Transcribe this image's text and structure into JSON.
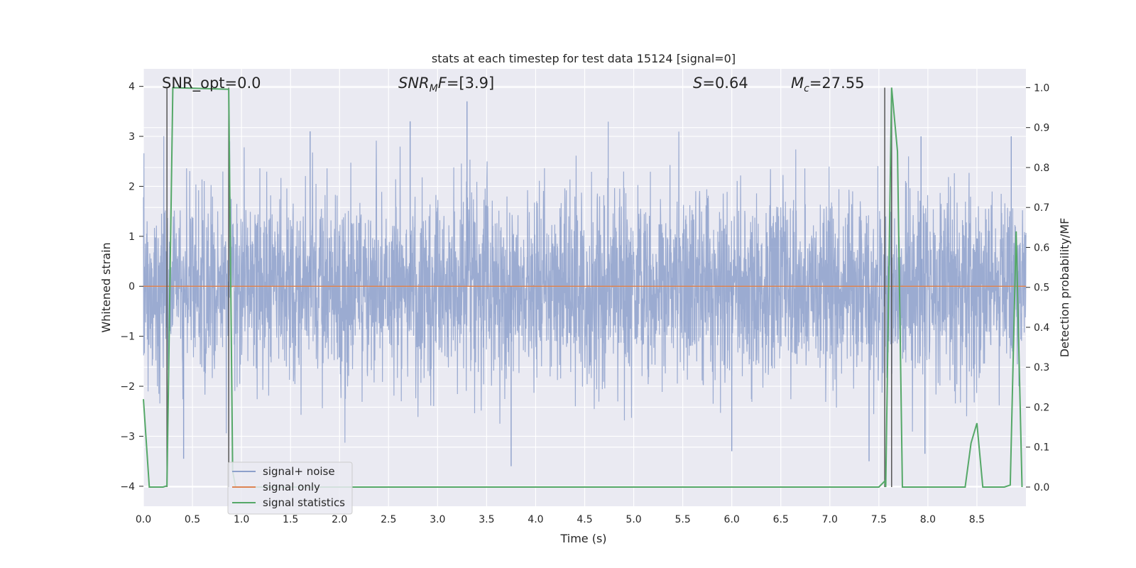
{
  "chart_data": {
    "type": "line",
    "title": "stats at each timestep for test data 15124 [signal=0]",
    "xlabel": "Time (s)",
    "ylabel_left": "Whitened strain",
    "ylabel_right": "Detection probability/MF",
    "xlim": [
      0,
      9.0
    ],
    "ylim_left": [
      -4.4,
      4.35
    ],
    "ylim_right": [
      -0.048,
      1.047
    ],
    "x_ticks": [
      0.0,
      0.5,
      1.0,
      1.5,
      2.0,
      2.5,
      3.0,
      3.5,
      4.0,
      4.5,
      5.0,
      5.5,
      6.0,
      6.5,
      7.0,
      7.5,
      8.0,
      8.5
    ],
    "x_tick_labels": [
      "0.0",
      "0.5",
      "1.0",
      "1.5",
      "2.0",
      "2.5",
      "3.0",
      "3.5",
      "4.0",
      "4.5",
      "5.0",
      "5.5",
      "6.0",
      "6.5",
      "7.0",
      "7.5",
      "8.0",
      "8.5"
    ],
    "y_ticks_left": [
      -4,
      -3,
      -2,
      -1,
      0,
      1,
      2,
      3,
      4
    ],
    "y_tick_labels_left": [
      "−4",
      "−3",
      "−2",
      "−1",
      "0",
      "1",
      "2",
      "3",
      "4"
    ],
    "y_ticks_right": [
      0.0,
      0.1,
      0.2,
      0.3,
      0.4,
      0.5,
      0.6,
      0.7,
      0.8,
      0.9,
      1.0
    ],
    "y_tick_labels_right": [
      "0.0",
      "0.1",
      "0.2",
      "0.3",
      "0.4",
      "0.5",
      "0.6",
      "0.7",
      "0.8",
      "0.9",
      "1.0"
    ],
    "annotations": {
      "snr_opt": "SNR_opt=0.0",
      "snr_mf_name": "SNR",
      "snr_mf_sub": "M",
      "snr_mf_rest": "F",
      "snr_mf_value": "=[3.9]",
      "s_name": "S",
      "s_value": "=0.64",
      "mc_name": "M",
      "mc_sub": "c",
      "mc_value": "=27.55"
    },
    "legend": {
      "location": "lower-left",
      "entries": [
        "signal+ noise",
        "signal only",
        "signal statistics"
      ]
    },
    "series": [
      {
        "name": "signal+ noise",
        "axis": "left",
        "color": "#8da0cb",
        "description": "whitened noise",
        "x_range": [
          0,
          9.0
        ],
        "typical_amplitude": 2.0,
        "peaks": [
          [
            3.3,
            3.7
          ],
          [
            2.72,
            3.3
          ],
          [
            1.7,
            3.1
          ],
          [
            7.93,
            3.0
          ],
          [
            8.85,
            3.0
          ],
          [
            3.75,
            -3.6
          ],
          [
            7.4,
            -3.5
          ],
          [
            0.41,
            -3.45
          ],
          [
            6.0,
            -3.3
          ],
          [
            7.97,
            -3.35
          ]
        ]
      },
      {
        "name": "signal only",
        "axis": "left",
        "color": "#dd8452",
        "x": [
          0,
          9.0
        ],
        "y": [
          0,
          0
        ]
      },
      {
        "name": "signal statistics",
        "axis": "right",
        "color": "#55a868",
        "x": [
          0.0,
          0.06,
          0.2,
          0.24,
          0.3,
          0.87,
          0.91,
          0.94,
          7.5,
          7.56,
          7.57,
          7.63,
          7.69,
          7.74,
          7.77,
          8.38,
          8.44,
          8.5,
          8.56,
          8.78,
          8.84,
          8.9,
          8.96
        ],
        "y": [
          0.22,
          0.0,
          0.0,
          0.003,
          1.0,
          0.996,
          0.04,
          0.0,
          0.0,
          0.015,
          0.0,
          1.0,
          0.84,
          0.0,
          0.0,
          0.0,
          0.11,
          0.16,
          0.0,
          0.0,
          0.005,
          0.64,
          0.0
        ]
      }
    ],
    "vertical_markers": {
      "color": "#555555",
      "x": [
        0.24,
        0.87,
        7.56,
        7.63
      ]
    }
  }
}
